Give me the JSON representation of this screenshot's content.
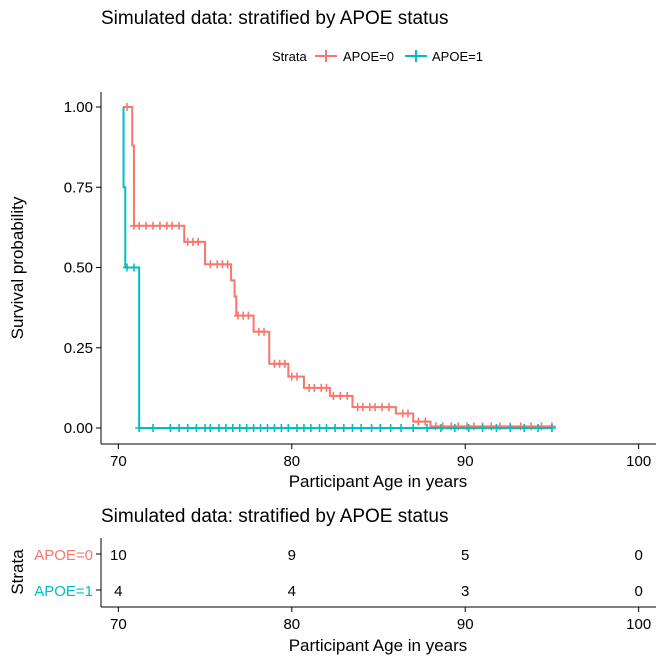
{
  "colors": {
    "apoe0": "#F8766D",
    "apoe1": "#00BFC4",
    "axis": "#000000"
  },
  "chart_data": [
    {
      "type": "line",
      "subtype": "kaplan-meier step",
      "title": "Simulated data: stratified by APOE status",
      "xlabel": "Participant Age in years",
      "ylabel": "Survival probability",
      "xlim": [
        69,
        101
      ],
      "ylim": [
        0,
        1
      ],
      "x_ticks": [
        "70",
        "80",
        "90",
        "100"
      ],
      "y_ticks": [
        "0.00",
        "0.25",
        "0.50",
        "0.75",
        "1.00"
      ],
      "grid": false,
      "legend": {
        "title": "Strata",
        "position": "top",
        "entries": [
          "APOE=0",
          "APOE=1"
        ]
      },
      "series": [
        {
          "name": "APOE=0",
          "color": "#F8766D",
          "steps": [
            [
              70.3,
              1.0
            ],
            [
              70.8,
              0.88
            ],
            [
              70.9,
              0.63
            ],
            [
              73.8,
              0.58
            ],
            [
              75.0,
              0.51
            ],
            [
              76.5,
              0.46
            ],
            [
              76.7,
              0.41
            ],
            [
              76.8,
              0.35
            ],
            [
              77.8,
              0.3
            ],
            [
              78.7,
              0.2
            ],
            [
              79.8,
              0.16
            ],
            [
              80.7,
              0.125
            ],
            [
              82.2,
              0.1
            ],
            [
              83.5,
              0.065
            ],
            [
              86.0,
              0.045
            ],
            [
              87.0,
              0.02
            ],
            [
              88.0,
              0.005
            ],
            [
              95.0,
              0.005
            ]
          ],
          "censor_x": [
            70.5,
            70.9,
            71.2,
            71.6,
            72.0,
            72.4,
            72.8,
            73.1,
            73.5,
            74.0,
            74.3,
            74.6,
            75.3,
            75.7,
            76.0,
            76.3,
            76.9,
            77.2,
            77.5,
            78.1,
            78.4,
            79.0,
            79.3,
            79.6,
            80.0,
            80.3,
            81.0,
            81.3,
            81.7,
            82.0,
            82.4,
            82.8,
            83.2,
            83.8,
            84.1,
            84.5,
            84.8,
            85.2,
            85.6,
            86.4,
            86.7,
            87.3,
            87.7,
            88.3,
            88.7,
            89.2,
            89.6,
            90.1,
            90.5,
            91.0,
            91.5,
            92.0,
            92.6,
            93.2,
            93.8,
            94.4,
            95.0
          ]
        },
        {
          "name": "APOE=1",
          "color": "#00BFC4",
          "steps": [
            [
              70.2,
              1.0
            ],
            [
              70.3,
              0.75
            ],
            [
              70.4,
              0.5
            ],
            [
              71.2,
              0.0
            ],
            [
              95.0,
              0.0
            ]
          ],
          "censor_x": [
            70.5,
            70.9,
            71.2,
            72.0,
            73.0,
            73.5,
            74.0,
            74.5,
            75.0,
            75.3,
            75.8,
            76.2,
            76.6,
            77.0,
            77.4,
            77.8,
            78.2,
            78.6,
            79.0,
            79.4,
            79.8,
            80.3,
            80.7,
            81.1,
            81.6,
            82.0,
            82.5,
            83.0,
            83.5,
            84.0,
            84.6,
            85.1,
            85.7,
            86.3,
            87.0,
            87.8,
            88.6,
            89.4,
            90.2,
            91.0,
            91.8,
            92.6,
            93.4,
            94.2,
            95.0
          ]
        }
      ]
    },
    {
      "type": "table",
      "subtype": "number at risk",
      "title": "Simulated data: stratified by APOE status",
      "xlabel": "Participant Age in years",
      "ylabel": "Strata",
      "xlim": [
        69,
        101
      ],
      "x_ticks": [
        "70",
        "80",
        "90",
        "100"
      ],
      "x": [
        70,
        80,
        90,
        100
      ],
      "rows": [
        {
          "name": "APOE=0",
          "color": "#F8766D",
          "values": [
            "10",
            "9",
            "5",
            "0"
          ]
        },
        {
          "name": "APOE=1",
          "color": "#00BFC4",
          "values": [
            "4",
            "4",
            "3",
            "0"
          ]
        }
      ]
    }
  ]
}
